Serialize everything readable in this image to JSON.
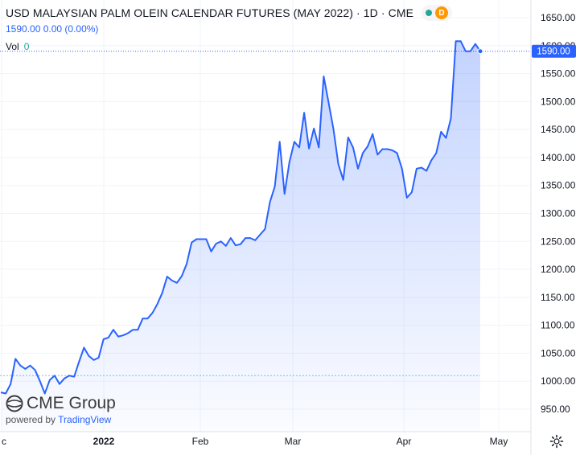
{
  "legend": {
    "title": "USD MALAYSIAN PALM OLEIN CALENDAR FUTURES (MAY 2022) · 1D · CME",
    "ohlc": "1590.00  0.00 (0.00%)",
    "vol_label": "Vol",
    "vol_value": "0",
    "badge": "D"
  },
  "logo": {
    "brand": "CME Group",
    "powered_prefix": "powered by",
    "powered_brand": "TradingView"
  },
  "price_tag": "1590.00",
  "colors": {
    "line": "#2962ff",
    "accent": "#ff9800",
    "live": "#26a69a"
  },
  "chart_data": {
    "type": "area",
    "symbol": "USD MALAYSIAN PALM OLEIN CALENDAR FUTURES (MAY 2022)",
    "interval": "1D",
    "ylim": [
      920,
      1660
    ],
    "yticks": [
      950,
      1000,
      1050,
      1100,
      1150,
      1200,
      1250,
      1300,
      1350,
      1400,
      1450,
      1500,
      1550,
      1600,
      1650
    ],
    "xticks": [
      "c",
      "2022",
      "Feb",
      "Mar",
      "Apr",
      "May"
    ],
    "last_price": 1590,
    "reference_level": 1010,
    "values": [
      980,
      978,
      995,
      1040,
      1028,
      1022,
      1028,
      1020,
      1000,
      978,
      1002,
      1010,
      995,
      1005,
      1010,
      1008,
      1035,
      1060,
      1045,
      1038,
      1042,
      1075,
      1078,
      1092,
      1080,
      1082,
      1086,
      1092,
      1092,
      1112,
      1112,
      1122,
      1138,
      1158,
      1187,
      1180,
      1176,
      1188,
      1210,
      1248,
      1254,
      1254,
      1254,
      1232,
      1246,
      1250,
      1242,
      1256,
      1243,
      1245,
      1256,
      1256,
      1252,
      1262,
      1272,
      1320,
      1348,
      1428,
      1335,
      1392,
      1428,
      1418,
      1480,
      1416,
      1452,
      1418,
      1545,
      1498,
      1450,
      1388,
      1360,
      1436,
      1418,
      1380,
      1408,
      1420,
      1442,
      1405,
      1415,
      1415,
      1413,
      1408,
      1380,
      1328,
      1338,
      1380,
      1382,
      1376,
      1395,
      1408,
      1446,
      1435,
      1470,
      1608,
      1608,
      1590,
      1590,
      1603,
      1590
    ]
  }
}
